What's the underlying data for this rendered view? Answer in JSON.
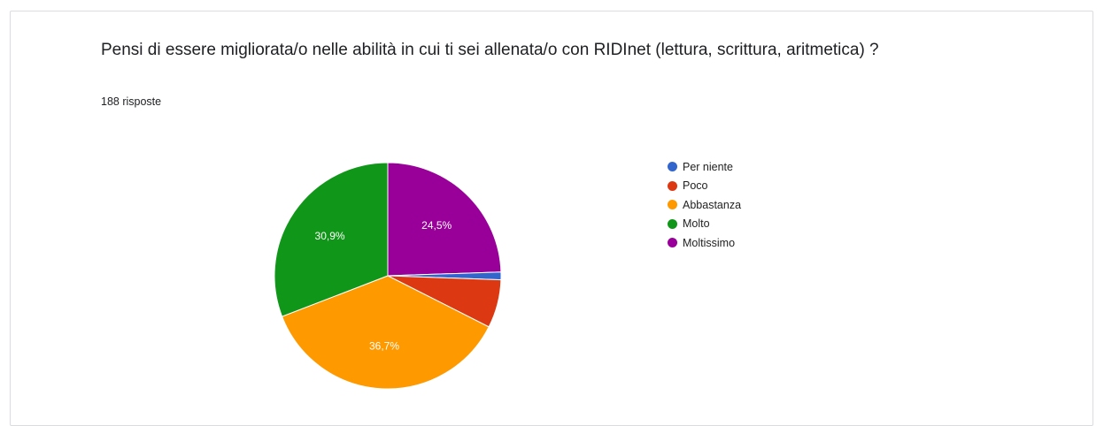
{
  "question": {
    "title": "Pensi di essere migliorata/o nelle abilità in cui ti sei allenata/o con RIDInet (lettura, scrittura, aritmetica) ?",
    "response_count": "188 risposte"
  },
  "chart_data": {
    "type": "pie",
    "title": "",
    "start": "top, clockwise",
    "slices": [
      {
        "name": "Moltissimo",
        "percent": 24.5,
        "label": "24,5%",
        "color": "#990099"
      },
      {
        "name": "Per niente",
        "percent": 1.1,
        "label": "",
        "color": "#3366cc"
      },
      {
        "name": "Poco",
        "percent": 6.9,
        "label": "",
        "color": "#dc3912"
      },
      {
        "name": "Abbastanza",
        "percent": 36.7,
        "label": "36,7%",
        "color": "#ff9900"
      },
      {
        "name": "Molto",
        "percent": 30.9,
        "label": "30,9%",
        "color": "#109618"
      }
    ],
    "legend": {
      "position": "right",
      "items": [
        {
          "label": "Per niente",
          "color": "#3366cc"
        },
        {
          "label": "Poco",
          "color": "#dc3912"
        },
        {
          "label": "Abbastanza",
          "color": "#ff9900"
        },
        {
          "label": "Molto",
          "color": "#109618"
        },
        {
          "label": "Moltissimo",
          "color": "#990099"
        }
      ]
    }
  }
}
